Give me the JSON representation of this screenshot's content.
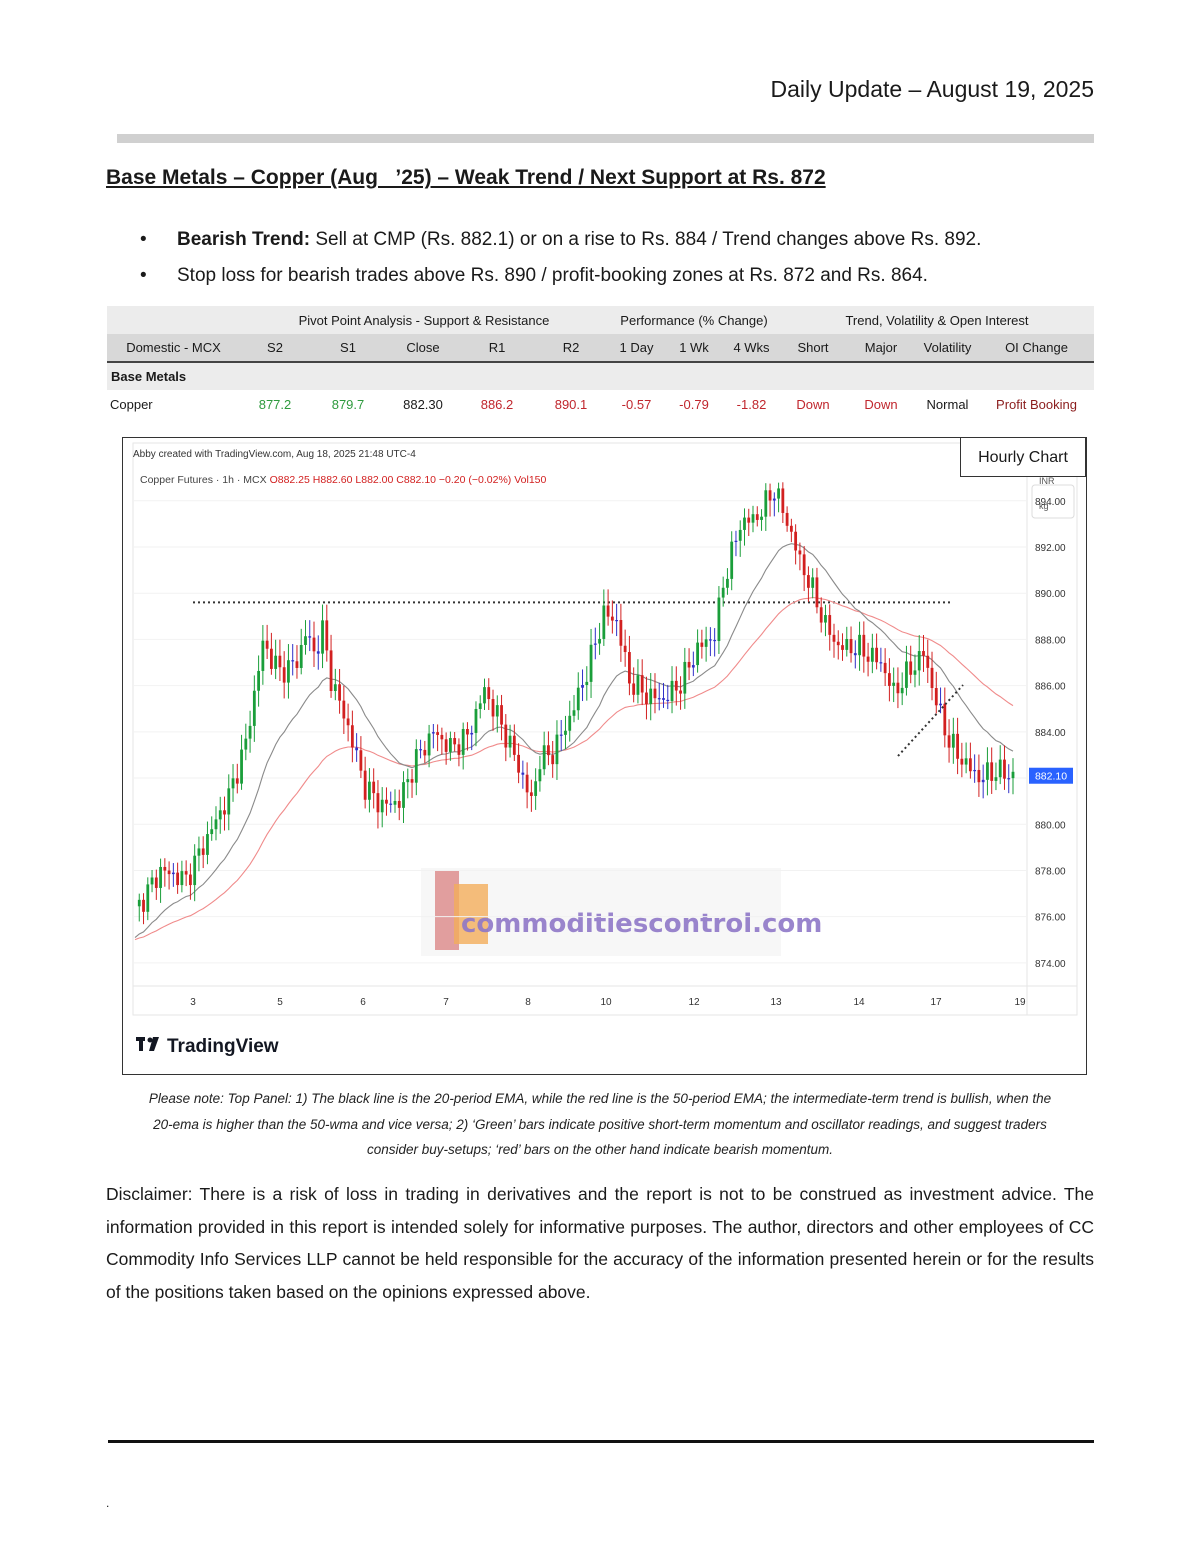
{
  "header": {
    "date": "Daily Update – August 19, 2025"
  },
  "title": "Base Metals – Copper (Aug   ’25) – Weak Trend / Next Support at Rs. 872",
  "bullets": [
    {
      "bold": "Bearish Trend:",
      "text": " Sell at CMP (Rs. 882.1) or on a rise to Rs. 884 / Trend changes above Rs. 892."
    },
    {
      "bold": "",
      "text": "Stop loss for bearish trades above Rs. 890 / profit-booking zones at Rs. 872 and Rs. 864."
    }
  ],
  "table": {
    "groups": {
      "pivot": "Pivot Point Analysis - Support & Resistance",
      "performance": "Performance (% Change)",
      "trend": "Trend, Volatility & Open Interest"
    },
    "headers": [
      "Domestic - MCX",
      "S2",
      "S1",
      "Close",
      "R1",
      "R2",
      "1 Day",
      "1 Wk",
      "4 Wks",
      "Short",
      "Major",
      "Volatility",
      "OI Change"
    ],
    "section": "Base Metals",
    "row": [
      "Copper",
      "877.2",
      "879.7",
      "882.30",
      "886.2",
      "890.1",
      "-0.57",
      "-0.79",
      "-1.82",
      "Down",
      "Down",
      "Normal",
      "Profit Booking"
    ],
    "colors": {
      "positive": "#2e9a3e",
      "negative": "#c0262d",
      "oi": "#8b1d1d"
    }
  },
  "chart": {
    "hourly_label": "Hourly Chart",
    "created_by": "Abby created with TradingView.com, Aug 18, 2025 21:48 UTC-4",
    "symbol": "Copper Futures · 1h · MCX",
    "ohlc": {
      "o": "O882.25",
      "h": "H882.60",
      "l": "L882.00",
      "c": "C882.10",
      "change": "−0.20 (−0.02%)",
      "vol": "Vol150"
    },
    "currency_unit": "INR",
    "weight_unit": "kg",
    "last_price": "882.10",
    "watermark": "commoditiescontrol.com",
    "brand": "TradingView",
    "stray_mark": "`"
  },
  "chart_data": {
    "type": "candlestick",
    "ylim": [
      873,
      896.5
    ],
    "y_ticks": [
      "894.00",
      "892.00",
      "890.00",
      "888.00",
      "886.00",
      "884.00",
      "882.00",
      "880.00",
      "878.00",
      "876.00",
      "874.00"
    ],
    "x_ticks": [
      "3",
      "5",
      "6",
      "7",
      "8",
      "10",
      "12",
      "13",
      "14",
      "17",
      "19"
    ],
    "resistance_level": 889.6,
    "colors": {
      "up": "#1a9e3a",
      "down": "#d22020",
      "neutral": "#3030c8",
      "ema20": "#8a8a8a",
      "ema50": "#f08b8b",
      "last_price_bg": "#2962ff"
    }
  },
  "note": {
    "line1": "Please note: Top Panel: 1) The black line is the 20-period EMA, while the red line is the 50-period EMA; the intermediate-term trend is bullish, when the",
    "line2": "20-ema is higher than the 50-wma and vice versa; 2)   ‘Green’   bars indicate positive short-term momentum and oscillator readings, and suggest traders",
    "line3": "consider buy-setups;   ‘red’   bars on the other hand indicate bearish momentum."
  },
  "disclaimer": "Disclaimer: There is a risk of loss in trading in derivatives and the report is not to be construed as investment advice. The information provided in this report is intended solely for informative purposes. The author, directors and other employees of CC Commodity Info Services LLP cannot be held responsible for the accuracy of the information presented herein or for the results of the positions taken based on the opinions expressed above.",
  "footer": {
    "dot": "."
  }
}
